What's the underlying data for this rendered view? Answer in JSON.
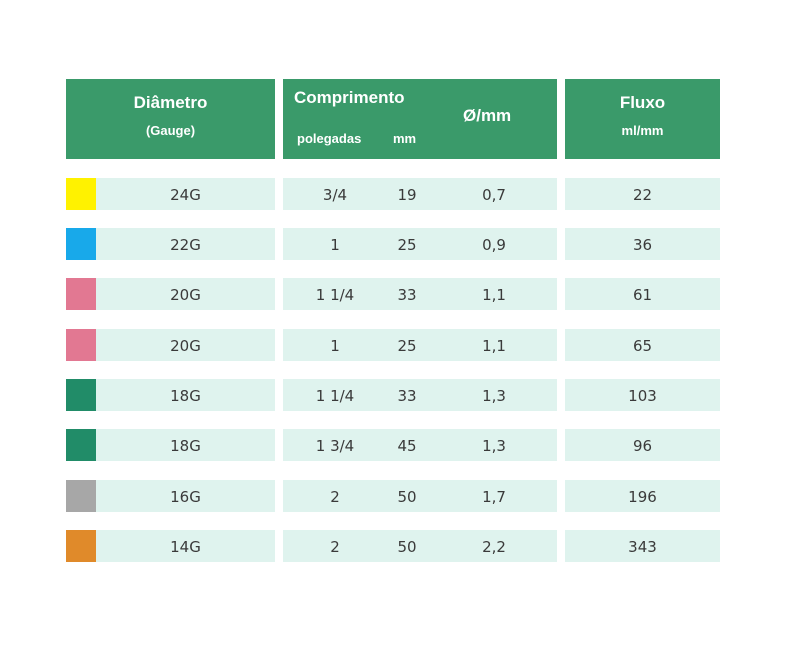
{
  "header": {
    "diametro": "Diâmetro",
    "gauge": "(Gauge)",
    "comprimento": "Comprimento",
    "polegadas": "polegadas",
    "mm": "mm",
    "diam_mm": "Ø/mm",
    "fluxo": "Fluxo",
    "ml_mm": "ml/mm"
  },
  "rows": [
    {
      "color": "#fff200",
      "gauge": "24G",
      "polegadas": "3/4",
      "mm": "19",
      "diam": "0,7",
      "fluxo": "22"
    },
    {
      "color": "#18a9ea",
      "gauge": "22G",
      "polegadas": "1",
      "mm": "25",
      "diam": "0,9",
      "fluxo": "36"
    },
    {
      "color": "#e27892",
      "gauge": "20G",
      "polegadas": "1 1/4",
      "mm": "33",
      "diam": "1,1",
      "fluxo": "61"
    },
    {
      "color": "#e27892",
      "gauge": "20G",
      "polegadas": "1",
      "mm": "25",
      "diam": "1,1",
      "fluxo": "65"
    },
    {
      "color": "#218c68",
      "gauge": "18G",
      "polegadas": "1 1/4",
      "mm": "33",
      "diam": "1,3",
      "fluxo": "103"
    },
    {
      "color": "#218c68",
      "gauge": "18G",
      "polegadas": "1 3/4",
      "mm": "45",
      "diam": "1,3",
      "fluxo": "96"
    },
    {
      "color": "#a7a7a7",
      "gauge": "16G",
      "polegadas": "2",
      "mm": "50",
      "diam": "1,7",
      "fluxo": "196"
    },
    {
      "color": "#e08a2a",
      "gauge": "14G",
      "polegadas": "2",
      "mm": "50",
      "diam": "2,2",
      "fluxo": "343"
    }
  ]
}
